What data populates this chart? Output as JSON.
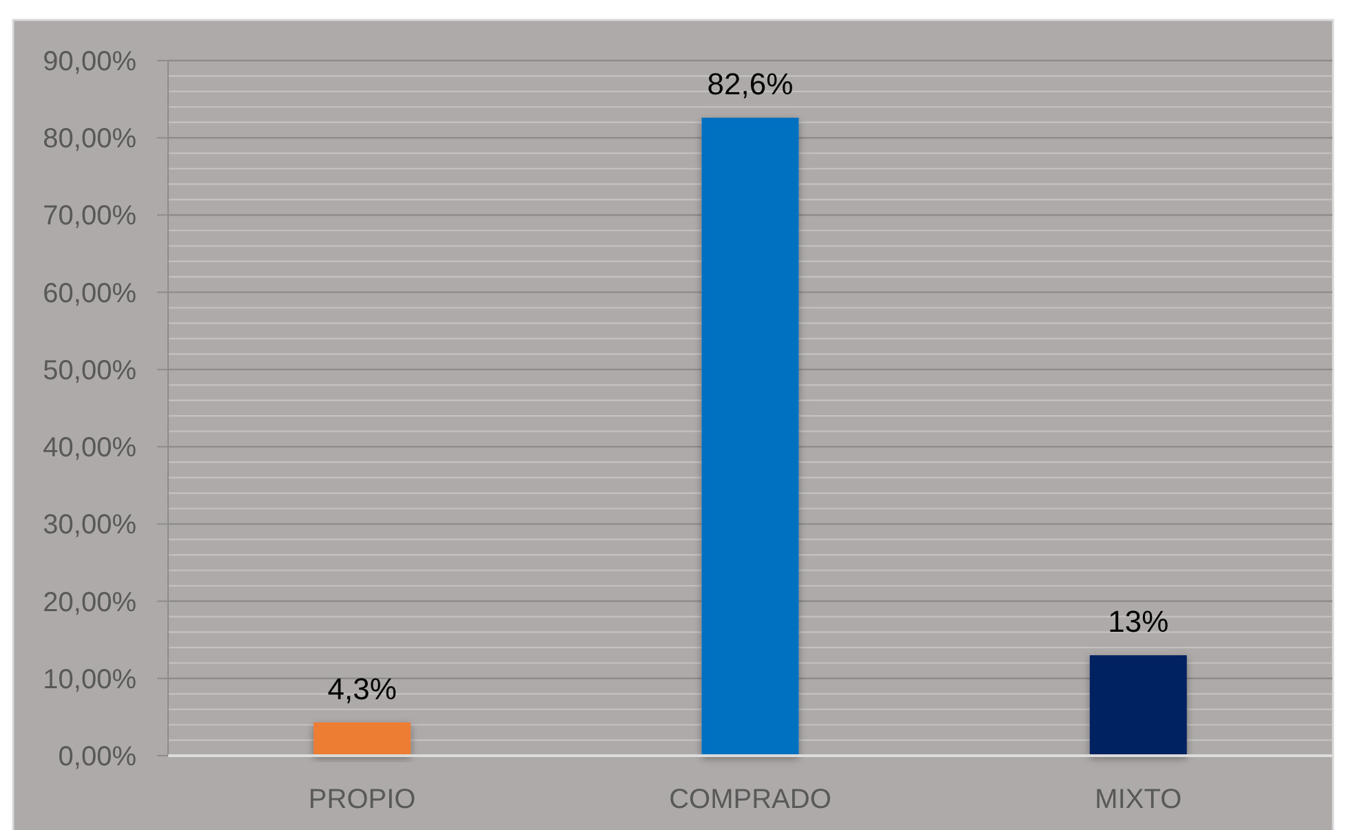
{
  "chart_data": {
    "type": "bar",
    "categories": [
      "PROPIO",
      "COMPRADO",
      "MIXTO"
    ],
    "values": [
      4.3,
      82.6,
      13
    ],
    "colors": [
      "#ed7d31",
      "#0070c0",
      "#002060"
    ],
    "value_labels": [
      "4,3%",
      "82,6%",
      "13%"
    ],
    "ylim": [
      0,
      90
    ],
    "yticks": [
      {
        "value": 0,
        "label": "0,00%"
      },
      {
        "value": 10,
        "label": "10,00%"
      },
      {
        "value": 20,
        "label": "20,00%"
      },
      {
        "value": 30,
        "label": "30,00%"
      },
      {
        "value": 40,
        "label": "40,00%"
      },
      {
        "value": 50,
        "label": "50,00%"
      },
      {
        "value": 60,
        "label": "60,00%"
      },
      {
        "value": 70,
        "label": "70,00%"
      },
      {
        "value": 80,
        "label": "80,00%"
      },
      {
        "value": 90,
        "label": "90,00%"
      }
    ],
    "grid": "y"
  }
}
